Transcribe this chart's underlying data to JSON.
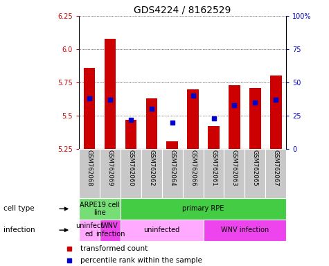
{
  "title": "GDS4224 / 8162529",
  "samples": [
    "GSM762068",
    "GSM762069",
    "GSM762060",
    "GSM762062",
    "GSM762064",
    "GSM762066",
    "GSM762061",
    "GSM762063",
    "GSM762065",
    "GSM762067"
  ],
  "red_values": [
    5.86,
    6.08,
    5.47,
    5.63,
    5.31,
    5.7,
    5.42,
    5.73,
    5.71,
    5.8
  ],
  "blue_values": [
    38,
    37,
    22,
    30,
    20,
    40,
    23,
    33,
    35,
    37
  ],
  "ylim": [
    5.25,
    6.25
  ],
  "yticks": [
    5.25,
    5.5,
    5.75,
    6.0,
    6.25
  ],
  "right_yticks": [
    0,
    25,
    50,
    75,
    100
  ],
  "right_ylabels": [
    "0",
    "25",
    "50",
    "75",
    "100%"
  ],
  "bar_color": "#cc0000",
  "blue_color": "#0000cc",
  "cell_type_labels": [
    [
      "ARPE19 cell\nline",
      0,
      2
    ],
    [
      "primary RPE",
      2,
      10
    ]
  ],
  "cell_type_colors": [
    "#77dd77",
    "#44cc44"
  ],
  "infection_labels": [
    [
      "uninfect\ned",
      0,
      1
    ],
    [
      "WNV\ninfection",
      1,
      2
    ],
    [
      "uninfected",
      2,
      6
    ],
    [
      "WNV infection",
      6,
      10
    ]
  ],
  "infection_colors": [
    "#ffaaff",
    "#ee44ee",
    "#ffaaff",
    "#ee44ee"
  ],
  "left_label": "cell type",
  "infection_label": "infection",
  "legend_red": "transformed count",
  "legend_blue": "percentile rank within the sample",
  "title_fontsize": 10,
  "tick_fontsize": 7,
  "bar_width": 0.55,
  "sample_fontsize": 6.2,
  "row_label_fontsize": 7.5,
  "legend_fontsize": 7.5,
  "annot_fontsize": 7
}
